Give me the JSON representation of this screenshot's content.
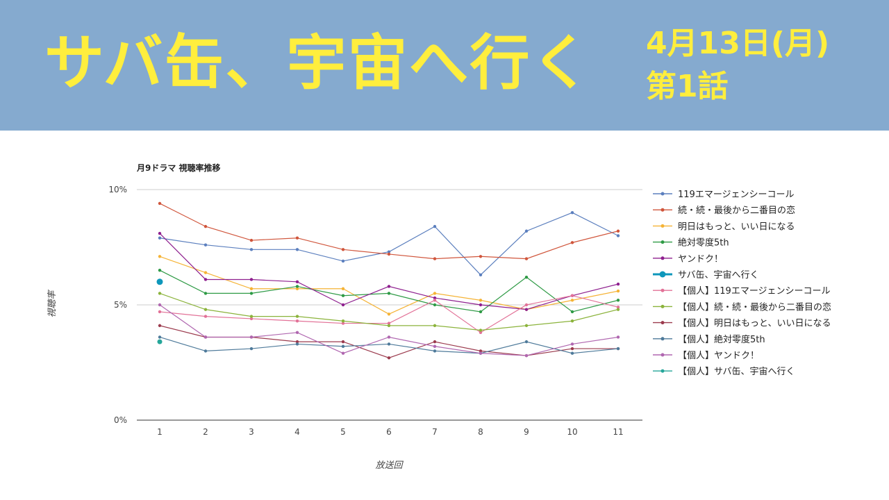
{
  "banner": {
    "title": "サバ缶、宇宙へ行く",
    "date": "4月13日(月)",
    "episode": "第1話"
  },
  "colors": {
    "banner_bg": "#85aacf",
    "banner_text": "#ffee3d"
  },
  "chart_data": {
    "type": "line",
    "title": "月9ドラマ 視聴率推移",
    "xlabel": "放送回",
    "ylabel": "視聴率",
    "ylim": [
      0,
      10
    ],
    "y_ticks": [
      "0%",
      "5%",
      "10%"
    ],
    "x": [
      1,
      2,
      3,
      4,
      5,
      6,
      7,
      8,
      9,
      10,
      11
    ],
    "x_tick_labels": [
      "1",
      "2",
      "3",
      "4",
      "5",
      "6",
      "7",
      "8",
      "9",
      "10",
      "11"
    ],
    "grid": true,
    "legend": "right",
    "series": [
      {
        "name": "119エマージェンシーコール",
        "color": "#5b7fbe",
        "values": [
          7.9,
          7.6,
          7.4,
          7.4,
          6.9,
          7.3,
          8.4,
          6.3,
          8.2,
          9.0,
          8.0
        ]
      },
      {
        "name": "続・続・最後から二番目の恋",
        "color": "#d0553b",
        "values": [
          9.4,
          8.4,
          7.8,
          7.9,
          7.4,
          7.2,
          7.0,
          7.1,
          7.0,
          7.7,
          8.2
        ]
      },
      {
        "name": "明日はもっと、いい日になる",
        "color": "#f5b335",
        "values": [
          7.1,
          6.4,
          5.7,
          5.7,
          5.7,
          4.6,
          5.5,
          5.2,
          4.8,
          5.2,
          5.6
        ]
      },
      {
        "name": "絶対零度5th",
        "color": "#2e9a45",
        "values": [
          6.5,
          5.5,
          5.5,
          5.8,
          5.4,
          5.5,
          5.0,
          4.7,
          6.2,
          4.7,
          5.2
        ]
      },
      {
        "name": "ヤンドク！",
        "color": "#8e1f8e",
        "values": [
          8.1,
          6.1,
          6.1,
          6.0,
          5.0,
          5.8,
          5.3,
          5.0,
          4.8,
          5.4,
          5.9
        ]
      },
      {
        "name": "サバ缶、宇宙へ行く",
        "color": "#0e97bb",
        "highlight": true,
        "values": [
          6.0,
          null,
          null,
          null,
          null,
          null,
          null,
          null,
          null,
          null,
          null
        ]
      },
      {
        "name": "【個人】119エマージェンシーコール",
        "color": "#e27197",
        "values": [
          4.7,
          4.5,
          4.4,
          4.3,
          4.2,
          4.2,
          5.2,
          3.8,
          5.0,
          5.4,
          4.9
        ]
      },
      {
        "name": "【個人】続・続・最後から二番目の恋",
        "color": "#8bb33b",
        "values": [
          5.5,
          4.8,
          4.5,
          4.5,
          4.3,
          4.1,
          4.1,
          3.9,
          4.1,
          4.3,
          4.8
        ]
      },
      {
        "name": "【個人】明日はもっと、いい日になる",
        "color": "#9b3a4d",
        "values": [
          4.1,
          3.6,
          3.6,
          3.4,
          3.4,
          2.7,
          3.4,
          3.0,
          2.8,
          3.1,
          3.1
        ]
      },
      {
        "name": "【個人】絶対零度5th",
        "color": "#4e7a9a",
        "values": [
          3.6,
          3.0,
          3.1,
          3.3,
          3.2,
          3.3,
          3.0,
          2.9,
          3.4,
          2.9,
          3.1
        ]
      },
      {
        "name": "【個人】ヤンドク！",
        "color": "#b067b0",
        "values": [
          5.0,
          3.6,
          3.6,
          3.8,
          2.9,
          3.6,
          3.2,
          2.9,
          2.8,
          3.3,
          3.6
        ]
      },
      {
        "name": "【個人】サバ缶、宇宙へ行く",
        "color": "#26a69a",
        "values": [
          3.4,
          null,
          null,
          null,
          null,
          null,
          null,
          null,
          null,
          null,
          null
        ]
      }
    ]
  }
}
